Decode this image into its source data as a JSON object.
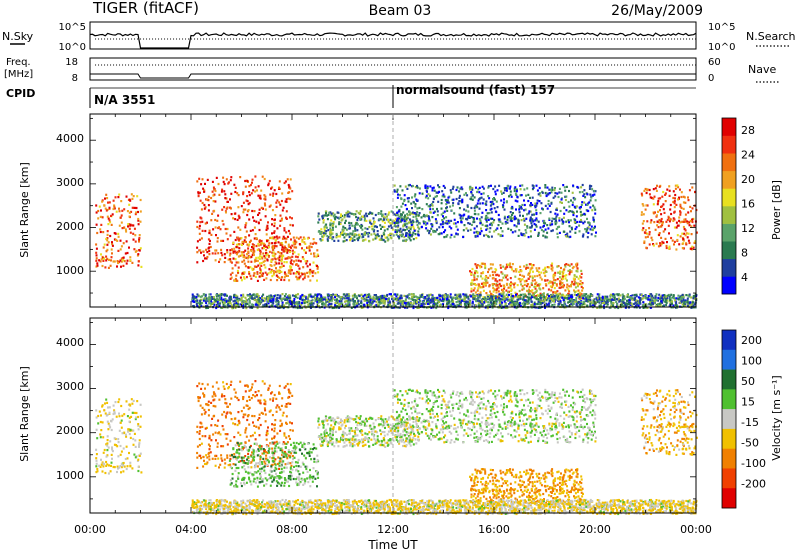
{
  "header": {
    "station": "TIGER (fitACF)",
    "beam": "Beam 03",
    "date": "26/May/2009"
  },
  "nsky_panel": {
    "left_label": "N.Sky",
    "right_label": "N.Search",
    "left_ticks": [
      "10^5",
      "10^0"
    ],
    "right_ticks": [
      "10^5",
      "10^0"
    ]
  },
  "freq_panel": {
    "left_label_1": "Freq.",
    "left_label_2": "[MHz]",
    "right_label": "Nave",
    "left_ticks": [
      "18",
      "8"
    ],
    "right_ticks": [
      "60",
      "0"
    ]
  },
  "cpid": {
    "label": "CPID",
    "mode_1": "N/A 3551",
    "mode_2": "normalsound (fast) 157"
  },
  "power_panel": {
    "ylabel": "Slant Range [km]",
    "y_ticks": [
      "4000",
      "3000",
      "2000",
      "1000"
    ],
    "colorbar_label": "Power [dB]",
    "colorbar_ticks": [
      "28",
      "24",
      "20",
      "16",
      "12",
      "8",
      "4"
    ],
    "colors": [
      "#0000ff",
      "#1f3f9f",
      "#2a7a50",
      "#5aa36a",
      "#a0c040",
      "#e8e020",
      "#f0a020",
      "#f07010",
      "#f03010",
      "#e00000"
    ]
  },
  "velocity_panel": {
    "ylabel": "Slant Range [km]",
    "y_ticks": [
      "4000",
      "3000",
      "2000",
      "1000"
    ],
    "colorbar_label": "Velocity [m s⁻¹]",
    "colorbar_ticks": [
      "200",
      "100",
      "50",
      "15",
      "-15",
      "-50",
      "-100",
      "-200"
    ],
    "colors": [
      "#1030c0",
      "#2070e0",
      "#207030",
      "#50c030",
      "#c8c8c4",
      "#f0c000",
      "#f08000",
      "#f04000",
      "#e00000"
    ]
  },
  "x_axis": {
    "label": "Time UT",
    "ticks": [
      "00:00",
      "04:00",
      "08:00",
      "12:00",
      "16:00",
      "20:00",
      "00:00"
    ]
  },
  "chart_data": {
    "type": "heatmap",
    "title": "TIGER (fitACF) Beam 03 26/May/2009",
    "xlabel": "Time UT",
    "ylabel": "Slant Range [km]",
    "xlim": [
      0,
      24
    ],
    "ylim": [
      180,
      4600
    ],
    "data_gap_hours": [
      2.0,
      4.0
    ],
    "power_scale_db": [
      0,
      30
    ],
    "velocity_scale_ms": [
      -250,
      250
    ],
    "scatter_features": [
      {
        "name": "early-band",
        "t_start": 0.2,
        "t_end": 2.0,
        "range_low": 1100,
        "range_high": 2800,
        "power_db": 24,
        "velocity": -15
      },
      {
        "name": "morning-patches",
        "t_start": 4.2,
        "t_end": 8.0,
        "range_low": 1200,
        "range_high": 3200,
        "power_db": 26,
        "velocity": -80
      },
      {
        "name": "morning-low-arc",
        "t_start": 5.5,
        "t_end": 9.0,
        "range_low": 800,
        "range_high": 1800,
        "power_db": 22,
        "velocity": 30
      },
      {
        "name": "midday-arc",
        "t_start": 9.0,
        "t_end": 13.0,
        "range_low": 1700,
        "range_high": 2400,
        "power_db": 10,
        "velocity": 5
      },
      {
        "name": "afternoon-streaks",
        "t_start": 12.0,
        "t_end": 20.0,
        "range_low": 1800,
        "range_high": 3000,
        "power_db": 6,
        "velocity": 10
      },
      {
        "name": "evening-arc",
        "t_start": 15.0,
        "t_end": 19.5,
        "range_low": 400,
        "range_high": 1200,
        "power_db": 20,
        "velocity": -50
      },
      {
        "name": "night-patch",
        "t_start": 21.8,
        "t_end": 24.0,
        "range_low": 1500,
        "range_high": 3000,
        "power_db": 24,
        "velocity": -40
      },
      {
        "name": "ground-scatter",
        "t_start": 4.0,
        "t_end": 24.0,
        "range_low": 180,
        "range_high": 500,
        "power_db": 8,
        "velocity": -15
      }
    ]
  }
}
